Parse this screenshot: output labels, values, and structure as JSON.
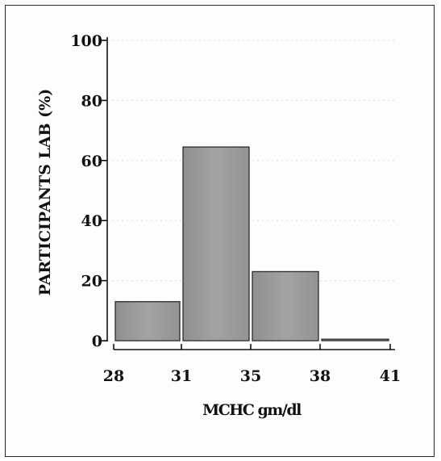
{
  "chart_data": {
    "type": "bar",
    "ylabel": "PARTICIPANTS LAB (%)",
    "xlabel": "MCHC gm/dl",
    "x_ticks": [
      "28",
      "31",
      "35",
      "38",
      "41"
    ],
    "y_ticks": [
      "0",
      "20",
      "40",
      "60",
      "80",
      "100"
    ],
    "ylim": [
      0,
      100
    ],
    "bins": [
      {
        "from": "28",
        "to": "31",
        "value": 13
      },
      {
        "from": "31",
        "to": "35",
        "value": 64.5
      },
      {
        "from": "35",
        "to": "38",
        "value": 23
      },
      {
        "from": "38",
        "to": "41",
        "value": 0.5
      }
    ],
    "bar_color": "#9a9a9a",
    "grid": "faint-dotted"
  }
}
